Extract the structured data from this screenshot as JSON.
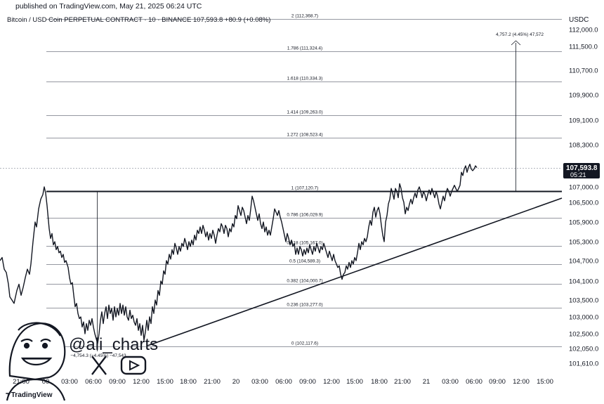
{
  "header": {
    "published": "published on TradingView.com, May 21, 2025 06:24 UTC",
    "symbol": "Bitcoin / USD Coin PERPETUAL CONTRACT · 10 · BINANCE  107,593.8  +80.9 (+0.08%)",
    "currency": "USDC"
  },
  "footer": {
    "brand": "TradingView"
  },
  "watermark": {
    "handle": "@ali_charts",
    "icons": [
      "x-logo-icon",
      "youtube-icon"
    ],
    "avatar": "cartoon-face-avatar"
  },
  "price_tag": {
    "value": "107,593.8",
    "countdown": "05:21"
  },
  "colors": {
    "line": "#131722",
    "tag_bg": "#131722",
    "fib_line": "#787b86"
  },
  "chart_data": {
    "type": "line",
    "ylim": [
      101300,
      112600
    ],
    "y_ticks": [
      "112,000.0",
      "111,500.0",
      "110,700.0",
      "109,900.0",
      "109,100.0",
      "108,300.0",
      "107,000.0",
      "106,500.0",
      "105,900.0",
      "105,300.0",
      "104,700.0",
      "104,100.0",
      "103,500.0",
      "103,000.0",
      "102,500.0",
      "102,050.0",
      "101,610.0"
    ],
    "x_ticks": [
      "21:00",
      "00",
      "03:00",
      "06:00",
      "09:00",
      "12:00",
      "15:00",
      "18:00",
      "21:00",
      "20",
      "03:00",
      "06:00",
      "09:00",
      "12:00",
      "15:00",
      "18:00",
      "21:00",
      "21",
      "03:00",
      "06:00",
      "09:00",
      "12:00",
      "15:00"
    ],
    "fib_levels": [
      {
        "label": "2 (112,368.7)",
        "value": 112368.7
      },
      {
        "label": "1.786 (111,324.4)",
        "value": 111324.4
      },
      {
        "label": "1.618 (110,334.3)",
        "value": 110334.3
      },
      {
        "label": "1.414 (109,263.0)",
        "value": 109263.0
      },
      {
        "label": "1.272 (108,523.4)",
        "value": 108523.4
      },
      {
        "label": "1 (107,120.7)",
        "value": 107120.7
      },
      {
        "label": "0.786 (106,029.9)",
        "value": 106029.9
      },
      {
        "label": "0.618 (105,167.0)",
        "value": 105167.0
      },
      {
        "label": "0.5 (104,589.3)",
        "value": 104589.3
      },
      {
        "label": "0.382 (104,000.7)",
        "value": 104000.7
      },
      {
        "label": "0.236 (103,277.0)",
        "value": 103277.0
      },
      {
        "label": "0 (102,117.6)",
        "value": 102117.6
      }
    ],
    "measure_up": {
      "label": "4,757.2 (4.45%) 47,572"
    },
    "measure_down": {
      "label": "−4,754.3 (−4.45%) −47,543"
    },
    "price_series": [
      [
        0,
        104700
      ],
      [
        3,
        104800
      ],
      [
        6,
        104450
      ],
      [
        9,
        104350
      ],
      [
        12,
        104000
      ],
      [
        14,
        103600
      ],
      [
        17,
        103500
      ],
      [
        20,
        103400
      ],
      [
        24,
        103800
      ],
      [
        27,
        104000
      ],
      [
        30,
        103650
      ],
      [
        33,
        103900
      ],
      [
        36,
        104200
      ],
      [
        39,
        104450
      ],
      [
        42,
        104300
      ],
      [
        44,
        104600
      ],
      [
        47,
        105300
      ],
      [
        50,
        105900
      ],
      [
        52,
        105750
      ],
      [
        55,
        106300
      ],
      [
        58,
        106600
      ],
      [
        61,
        106750
      ],
      [
        63,
        107000
      ],
      [
        65,
        106800
      ],
      [
        67,
        106400
      ],
      [
        70,
        105700
      ],
      [
        72,
        105400
      ],
      [
        74,
        105550
      ],
      [
        76,
        105200
      ],
      [
        78,
        105300
      ],
      [
        80,
        105050
      ],
      [
        82,
        105150
      ],
      [
        84,
        104950
      ],
      [
        86,
        105000
      ],
      [
        88,
        104800
      ],
      [
        90,
        104900
      ],
      [
        92,
        104650
      ],
      [
        94,
        104700
      ],
      [
        97,
        104500
      ],
      [
        99,
        104200
      ],
      [
        101,
        104000
      ],
      [
        103,
        104050
      ],
      [
        105,
        103650
      ],
      [
        107,
        103300
      ],
      [
        109,
        103400
      ],
      [
        111,
        103100
      ],
      [
        113,
        102950
      ],
      [
        115,
        103000
      ],
      [
        117,
        102700
      ],
      [
        119,
        102850
      ],
      [
        121,
        102500
      ],
      [
        123,
        102800
      ],
      [
        125,
        102600
      ],
      [
        127,
        102900
      ],
      [
        129,
        102750
      ],
      [
        131,
        102950
      ],
      [
        133,
        102700
      ],
      [
        135,
        102500
      ],
      [
        137,
        102350
      ],
      [
        139,
        102200
      ],
      [
        141,
        102500
      ],
      [
        143,
        102900
      ],
      [
        145,
        103150
      ],
      [
        147,
        102800
      ],
      [
        149,
        103100
      ],
      [
        151,
        103300
      ],
      [
        153,
        102950
      ],
      [
        155,
        103350
      ],
      [
        157,
        103100
      ],
      [
        159,
        103250
      ],
      [
        161,
        102900
      ],
      [
        163,
        103300
      ],
      [
        165,
        103000
      ],
      [
        167,
        103250
      ],
      [
        169,
        103050
      ],
      [
        171,
        103400
      ],
      [
        173,
        103100
      ],
      [
        175,
        103350
      ],
      [
        177,
        103050
      ],
      [
        179,
        103300
      ],
      [
        181,
        103000
      ],
      [
        183,
        102900
      ],
      [
        185,
        103200
      ],
      [
        187,
        102950
      ],
      [
        189,
        103050
      ],
      [
        191,
        102850
      ],
      [
        193,
        102750
      ],
      [
        195,
        102950
      ],
      [
        197,
        102600
      ],
      [
        199,
        102800
      ],
      [
        201,
        102450
      ],
      [
        203,
        102750
      ],
      [
        205,
        102300
      ],
      [
        207,
        102550
      ],
      [
        209,
        102900
      ],
      [
        211,
        102600
      ],
      [
        213,
        103000
      ],
      [
        215,
        102800
      ],
      [
        217,
        103300
      ],
      [
        219,
        103100
      ],
      [
        221,
        103500
      ],
      [
        223,
        103350
      ],
      [
        225,
        103800
      ],
      [
        227,
        103650
      ],
      [
        229,
        104100
      ],
      [
        231,
        104000
      ],
      [
        233,
        104400
      ],
      [
        235,
        104300
      ],
      [
        237,
        104700
      ],
      [
        239,
        104600
      ],
      [
        241,
        104900
      ],
      [
        243,
        104750
      ],
      [
        245,
        105050
      ],
      [
        247,
        104900
      ],
      [
        249,
        105250
      ],
      [
        251,
        105100
      ],
      [
        253,
        104900
      ],
      [
        255,
        105150
      ],
      [
        257,
        105000
      ],
      [
        259,
        105250
      ],
      [
        261,
        105150
      ],
      [
        263,
        105400
      ],
      [
        265,
        105250
      ],
      [
        267,
        105050
      ],
      [
        269,
        105300
      ],
      [
        271,
        105150
      ],
      [
        273,
        105350
      ],
      [
        275,
        105200
      ],
      [
        277,
        105500
      ],
      [
        279,
        105350
      ],
      [
        281,
        105650
      ],
      [
        283,
        105550
      ],
      [
        285,
        105750
      ],
      [
        287,
        105550
      ],
      [
        289,
        105800
      ],
      [
        291,
        105650
      ],
      [
        293,
        105450
      ],
      [
        295,
        105600
      ],
      [
        297,
        105350
      ],
      [
        299,
        105550
      ],
      [
        301,
        105400
      ],
      [
        303,
        105650
      ],
      [
        305,
        105500
      ],
      [
        307,
        105250
      ],
      [
        309,
        105500
      ],
      [
        311,
        105700
      ],
      [
        313,
        105600
      ],
      [
        315,
        105850
      ],
      [
        317,
        105750
      ],
      [
        319,
        105550
      ],
      [
        321,
        105800
      ],
      [
        323,
        105700
      ],
      [
        325,
        105450
      ],
      [
        327,
        105700
      ],
      [
        329,
        105600
      ],
      [
        331,
        105850
      ],
      [
        333,
        105750
      ],
      [
        335,
        106100
      ],
      [
        337,
        106000
      ],
      [
        339,
        106400
      ],
      [
        341,
        106250
      ],
      [
        343,
        106100
      ],
      [
        345,
        106350
      ],
      [
        347,
        106250
      ],
      [
        349,
        106050
      ],
      [
        351,
        105850
      ],
      [
        353,
        106100
      ],
      [
        355,
        105950
      ],
      [
        357,
        106300
      ],
      [
        359,
        106700
      ],
      [
        361,
        106550
      ],
      [
        363,
        106350
      ],
      [
        365,
        106150
      ],
      [
        367,
        105950
      ],
      [
        369,
        106150
      ],
      [
        371,
        105850
      ],
      [
        373,
        105700
      ],
      [
        375,
        105900
      ],
      [
        377,
        105600
      ],
      [
        379,
        105750
      ],
      [
        381,
        105500
      ],
      [
        383,
        105650
      ],
      [
        385,
        105500
      ],
      [
        387,
        105750
      ],
      [
        389,
        106000
      ],
      [
        391,
        106300
      ],
      [
        393,
        106200
      ],
      [
        395,
        106100
      ],
      [
        397,
        106250
      ],
      [
        399,
        106050
      ],
      [
        401,
        105900
      ],
      [
        403,
        105700
      ],
      [
        405,
        105500
      ],
      [
        407,
        105300
      ],
      [
        409,
        105550
      ],
      [
        411,
        105400
      ],
      [
        413,
        105200
      ],
      [
        415,
        105350
      ],
      [
        417,
        105150
      ],
      [
        419,
        105250
      ],
      [
        421,
        104900
      ],
      [
        423,
        105100
      ],
      [
        425,
        104900
      ],
      [
        427,
        105150
      ],
      [
        429,
        105050
      ],
      [
        431,
        104850
      ],
      [
        433,
        105050
      ],
      [
        435,
        104900
      ],
      [
        437,
        105100
      ],
      [
        439,
        104950
      ],
      [
        441,
        105200
      ],
      [
        443,
        105050
      ],
      [
        445,
        104900
      ],
      [
        447,
        105150
      ],
      [
        449,
        105000
      ],
      [
        451,
        105250
      ],
      [
        453,
        105100
      ],
      [
        455,
        104950
      ],
      [
        457,
        105150
      ],
      [
        459,
        105050
      ],
      [
        461,
        105250
      ],
      [
        463,
        105100
      ],
      [
        465,
        104950
      ],
      [
        467,
        104800
      ],
      [
        469,
        105000
      ],
      [
        471,
        104850
      ],
      [
        473,
        104700
      ],
      [
        475,
        104900
      ],
      [
        477,
        104700
      ],
      [
        479,
        104600
      ],
      [
        481,
        104500
      ],
      [
        483,
        104550
      ],
      [
        485,
        104300
      ],
      [
        487,
        104150
      ],
      [
        489,
        104300
      ],
      [
        491,
        104350
      ],
      [
        493,
        104550
      ],
      [
        495,
        104450
      ],
      [
        497,
        104650
      ],
      [
        499,
        104500
      ],
      [
        501,
        104700
      ],
      [
        503,
        104600
      ],
      [
        505,
        104800
      ],
      [
        507,
        104700
      ],
      [
        509,
        104950
      ],
      [
        511,
        105250
      ],
      [
        513,
        105050
      ],
      [
        515,
        105300
      ],
      [
        517,
        105200
      ],
      [
        519,
        105400
      ],
      [
        521,
        105300
      ],
      [
        523,
        105450
      ],
      [
        525,
        105750
      ],
      [
        527,
        105950
      ],
      [
        529,
        105800
      ],
      [
        531,
        106200
      ],
      [
        533,
        106350
      ],
      [
        535,
        106050
      ],
      [
        537,
        106250
      ],
      [
        539,
        106350
      ],
      [
        541,
        106150
      ],
      [
        543,
        105800
      ],
      [
        545,
        105500
      ],
      [
        547,
        105300
      ],
      [
        549,
        105900
      ],
      [
        551,
        106100
      ],
      [
        553,
        106450
      ],
      [
        555,
        106600
      ],
      [
        557,
        106950
      ],
      [
        559,
        106800
      ],
      [
        561,
        106600
      ],
      [
        563,
        106950
      ],
      [
        565,
        106850
      ],
      [
        567,
        106650
      ],
      [
        569,
        107100
      ],
      [
        571,
        106950
      ],
      [
        573,
        106650
      ],
      [
        575,
        106500
      ],
      [
        577,
        106150
      ],
      [
        579,
        106350
      ],
      [
        581,
        106250
      ],
      [
        583,
        106450
      ],
      [
        585,
        106600
      ],
      [
        587,
        106450
      ],
      [
        589,
        106650
      ],
      [
        591,
        106800
      ],
      [
        593,
        106650
      ],
      [
        595,
        106900
      ],
      [
        597,
        107000
      ],
      [
        599,
        106850
      ],
      [
        601,
        106650
      ],
      [
        603,
        106850
      ],
      [
        605,
        106750
      ],
      [
        607,
        106550
      ],
      [
        609,
        106750
      ],
      [
        611,
        106900
      ],
      [
        613,
        106750
      ],
      [
        615,
        106950
      ],
      [
        617,
        106800
      ],
      [
        619,
        106650
      ],
      [
        621,
        106850
      ],
      [
        623,
        106700
      ],
      [
        625,
        106450
      ],
      [
        627,
        106300
      ],
      [
        629,
        106500
      ],
      [
        631,
        106700
      ],
      [
        633,
        106550
      ],
      [
        635,
        106800
      ],
      [
        637,
        106950
      ],
      [
        639,
        106850
      ],
      [
        641,
        106700
      ],
      [
        643,
        106850
      ],
      [
        645,
        106950
      ],
      [
        647,
        107050
      ],
      [
        649,
        106950
      ],
      [
        651,
        106850
      ],
      [
        653,
        106950
      ],
      [
        655,
        107050
      ],
      [
        657,
        107450
      ],
      [
        659,
        107350
      ],
      [
        661,
        107550
      ],
      [
        663,
        107650
      ],
      [
        665,
        107450
      ],
      [
        667,
        107600
      ],
      [
        669,
        107700
      ],
      [
        671,
        107550
      ],
      [
        673,
        107500
      ],
      [
        675,
        107550
      ],
      [
        677,
        107650
      ],
      [
        679,
        107593.8
      ]
    ]
  }
}
